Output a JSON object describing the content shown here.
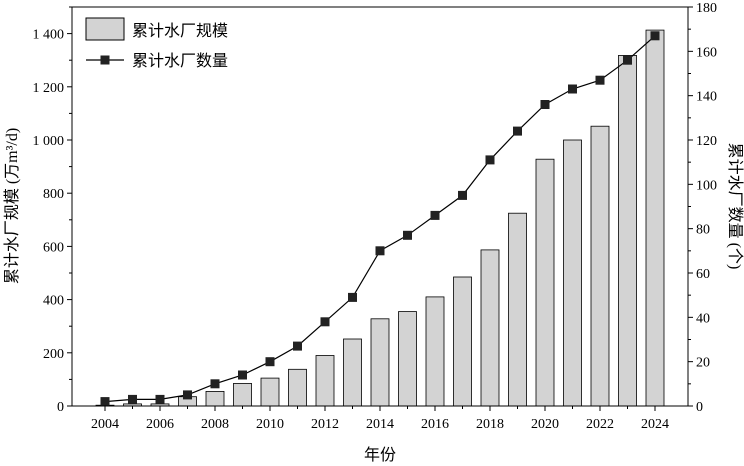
{
  "chart_data": {
    "type": "bar+line",
    "xlabel": "年份",
    "ylabel_left": "累计水厂规模 (万m³/d)",
    "ylabel_right": "累计水厂数量 (个)",
    "ylim_left": [
      0,
      1500
    ],
    "ylim_right": [
      0,
      180
    ],
    "xlim": [
      2002.8,
      2025.2
    ],
    "x_ticks": [
      "2004",
      "2006",
      "2008",
      "2010",
      "2012",
      "2014",
      "2016",
      "2018",
      "2020",
      "2022",
      "2024"
    ],
    "y_left_ticks": [
      "0",
      "200",
      "400",
      "600",
      "800",
      "1 000",
      "1 200",
      "1 400"
    ],
    "y_right_ticks": [
      "0",
      "20",
      "40",
      "60",
      "80",
      "100",
      "120",
      "140",
      "160",
      "180"
    ],
    "legend_position": "top-left",
    "years": [
      2004,
      2005,
      2006,
      2007,
      2008,
      2009,
      2010,
      2011,
      2012,
      2013,
      2014,
      2015,
      2016,
      2017,
      2018,
      2019,
      2020,
      2021,
      2022,
      2023,
      2024
    ],
    "series": [
      {
        "name": "累计水厂规模",
        "kind": "bar",
        "axis": "left",
        "color": "#d3d3d3",
        "values": [
          3,
          8,
          8,
          35,
          55,
          85,
          105,
          138,
          190,
          252,
          328,
          355,
          410,
          485,
          587,
          725,
          928,
          1000,
          1052,
          1318,
          1413
        ]
      },
      {
        "name": "累计水厂数量",
        "kind": "line",
        "axis": "right",
        "color": "#000000",
        "values": [
          2,
          3,
          3,
          5,
          10,
          14,
          20,
          27,
          38,
          49,
          70,
          77,
          86,
          95,
          111,
          124,
          136,
          143,
          147,
          156,
          167
        ]
      }
    ]
  }
}
